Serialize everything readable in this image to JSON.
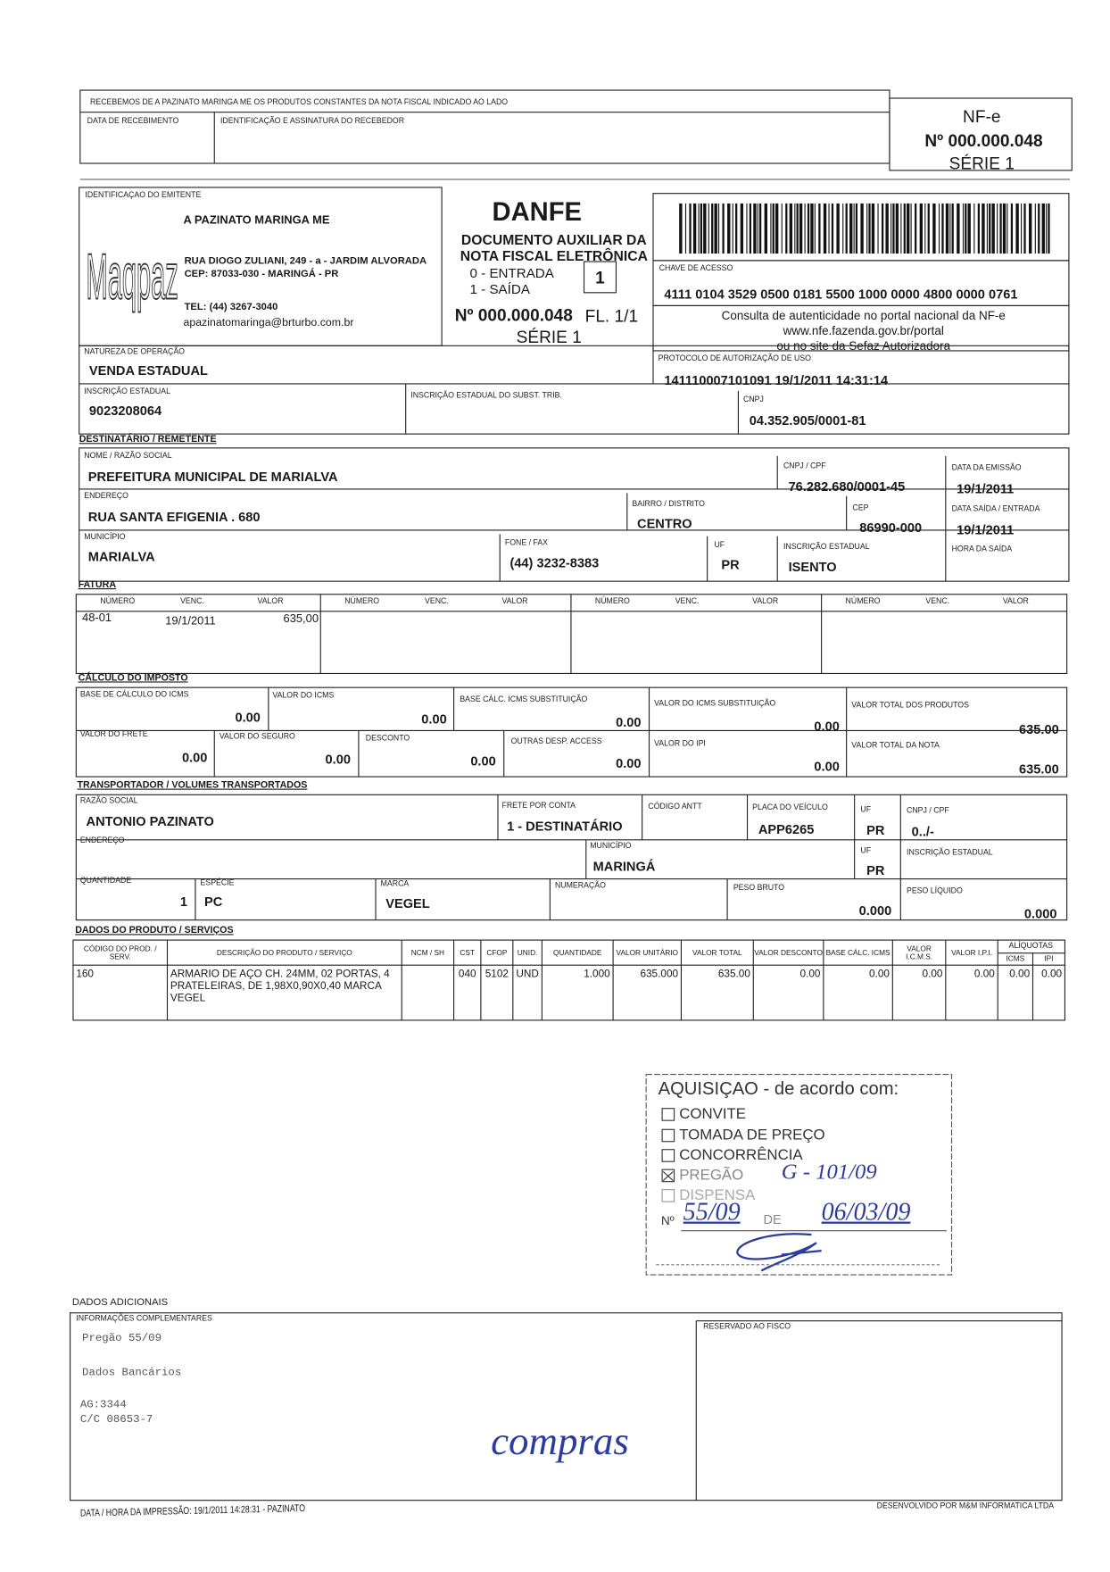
{
  "receipt": {
    "statement": "RECEBEMOS DE A PAZINATO MARINGA ME OS PRODUTOS CONSTANTES DA NOTA FISCAL INDICADO AO LADO",
    "date_label": "DATA DE RECEBIMENTO",
    "signature_label": "IDENTIFICAÇÃO E ASSINATURA DO RECEBEDOR",
    "nfe": "NF-e",
    "number": "Nº 000.000.048",
    "series": "SÉRIE 1"
  },
  "issuer": {
    "label": "IDENTIFICAÇAO DO EMITENTE",
    "logo": "Maqpaz",
    "name": "A PAZINATO MARINGA ME",
    "address": "RUA DIOGO ZULIANI, 249 - a - JARDIM ALVORADA",
    "cep": "CEP: 87033-030 - MARINGÁ - PR",
    "phone": "TEL: (44) 3267-3040",
    "email": "apazinatomaringa@brturbo.com.br"
  },
  "danfe": {
    "title": "DANFE",
    "subtitle_1": "DOCUMENTO AUXILIAR DA",
    "subtitle_2": "NOTA FISCAL ELETRÔNICA",
    "entry": "0 - ENTRADA",
    "exit": "1 - SAÍDA",
    "type": "1",
    "number": "Nº 000.000.048",
    "sheet": "FL. 1/1",
    "series": "SÉRIE 1"
  },
  "access": {
    "key_label": "CHAVE DE ACESSO",
    "key": "4111 0104 3529 0500 0181 5500 1000 0000 4800 0000 0761",
    "consult_1": "Consulta de autenticidade no portal nacional da NF-e",
    "consult_2": "www.nfe.fazenda.gov.br/portal",
    "consult_3": "ou no site da Sefaz Autorizadora"
  },
  "operation": {
    "nature_label": "NATUREZA DE OPERAÇÃO",
    "nature": "VENDA ESTADUAL",
    "protocol_label": "PROTOCOLO DE AUTORIZAÇÃO DE USO",
    "protocol": "141110007101091 19/1/2011 14:31:14",
    "ie_label": "INSCRIÇÃO ESTADUAL",
    "ie": "9023208064",
    "ie_subst_label": "INSCRIÇÃO ESTADUAL DO SUBST. TRIB.",
    "cnpj_label": "CNPJ",
    "cnpj": "04.352.905/0001-81"
  },
  "recipient": {
    "heading": "DESTINATÁRIO / REMETENTE",
    "name_label": "NOME / RAZÃO SOCIAL",
    "name": "PREFEITURA MUNICIPAL DE MARIALVA",
    "cnpj_label": "CNPJ / CPF",
    "cnpj": "76.282.680/0001-45",
    "emission_label": "DATA DA EMISSÃO",
    "emission_date": "19/1/2011",
    "address_label": "ENDEREÇO",
    "address": "RUA SANTA EFIGENIA . 680",
    "district_label": "BAIRRO / DISTRITO",
    "district": "CENTRO",
    "cep_label": "CEP",
    "cep": "86990-000",
    "exit_date_label": "DATA SAÍDA / ENTRADA",
    "exit_date": "19/1/2011",
    "city_label": "MUNICÍPIO",
    "city": "MARIALVA",
    "phone_label": "FONE / FAX",
    "phone": "(44) 3232-8383",
    "uf_label": "UF",
    "uf": "PR",
    "ie_label": "INSCRIÇÃO ESTADUAL",
    "ie": "ISENTO",
    "exit_time_label": "HORA DA SAÍDA"
  },
  "invoice": {
    "heading": "FATURA",
    "columns": [
      "NÚMERO",
      "VENC.",
      "VALOR"
    ],
    "items": [
      {
        "number": "48-01",
        "due": "19/1/2011",
        "value": "635,00"
      }
    ]
  },
  "tax": {
    "heading": "CÁLCULO DO IMPOSTO",
    "fields": [
      {
        "label": "BASE DE CÁLCULO DO ICMS",
        "value": "0.00"
      },
      {
        "label": "VALOR DO ICMS",
        "value": "0.00"
      },
      {
        "label": "BASE CÁLC. ICMS SUBSTITUIÇÃO",
        "value": "0.00"
      },
      {
        "label": "VALOR DO ICMS SUBSTITUIÇÃO",
        "value": "0.00"
      },
      {
        "label": "VALOR TOTAL DOS PRODUTOS",
        "value": "635.00"
      },
      {
        "label": "VALOR DO FRETE",
        "value": "0.00"
      },
      {
        "label": "VALOR DO SEGURO",
        "value": "0.00"
      },
      {
        "label": "DESCONTO",
        "value": "0.00"
      },
      {
        "label": "OUTRAS DESP. ACCESS",
        "value": "0.00"
      },
      {
        "label": "VALOR DO IPI",
        "value": "0.00"
      },
      {
        "label": "VALOR TOTAL DA NOTA",
        "value": "635.00"
      }
    ]
  },
  "transport": {
    "heading": "TRANSPORTADOR / VOLUMES TRANSPORTADOS",
    "name_label": "RAZÃO SOCIAL",
    "name": "ANTONIO PAZINATO",
    "freight_label": "FRETE POR CONTA",
    "freight": "1 - DESTINATÁRIO",
    "antt_label": "CÓDIGO ANTT",
    "plate_label": "PLACA DO VEÍCULO",
    "plate": "APP6265",
    "uf_label": "UF",
    "uf": "PR",
    "cnpj_label": "CNPJ / CPF",
    "cnpj": "0../-",
    "address_label": "ENDEREÇO",
    "city_label": "MUNICÍPIO",
    "city": "MARINGÁ",
    "uf2": "PR",
    "ie_label": "INSCRIÇÃO ESTADUAL",
    "quantity_label": "QUANTIDADE",
    "quantity": "1",
    "species_label": "ESPÉCIE",
    "species": "PC",
    "brand_label": "MARCA",
    "brand": "VEGEL",
    "numbering_label": "NUMERAÇÃO",
    "gross_label": "PESO BRUTO",
    "gross": "0.000",
    "net_label": "PESO LÍQUIDO",
    "net": "0.000"
  },
  "products": {
    "heading": "DADOS DO PRODUTO / SERVIÇOS",
    "rates_label": "ALÍQUOTAS",
    "columns": [
      "CÓDIGO DO PROD. / SERV.",
      "DESCRIÇÃO DO PRODUTO / SERVIÇO",
      "NCM / SH",
      "CST",
      "CFOP",
      "UNID.",
      "QUANTIDADE",
      "VALOR UNITÁRIO",
      "VALOR TOTAL",
      "VALOR DESCONTO",
      "BASE CÁLC. ICMS",
      "VALOR I.C.M.S.",
      "VALOR I.P.I.",
      "ICMS",
      "IPI"
    ],
    "items": [
      [
        "160",
        "ARMARIO DE AÇO CH. 24MM, 02 PORTAS, 4 PRATELEIRAS, DE 1,98X0,90X0,40 MARCA VEGEL",
        null,
        "040",
        "5102",
        "UND",
        "1.000",
        "635.000",
        "635.00",
        "0.00",
        "0.00",
        "0.00",
        "0.00",
        "0.00",
        "0.00"
      ]
    ]
  },
  "stamp": {
    "title": "AQUISIÇAO - de acordo com:",
    "options": [
      "CONVITE",
      "TOMADA DE PREÇO",
      "CONCORRÊNCIA",
      "PREGÃO",
      "DISPENSA"
    ],
    "process": "G - 101/09",
    "number_label": "Nº",
    "number": "55/09",
    "date_label": "DE",
    "date": "06/03/09"
  },
  "additional": {
    "heading": "DADOS ADICIONAIS",
    "info_label": "INFORMAÇÕES COMPLEMENTARES",
    "info_lines": [
      "Pregão 55/09",
      "Dados Bancários",
      "AG:3344",
      "C/C 08653-7"
    ],
    "note": "compras",
    "reserved_label": "RESERVADO AO FISCO"
  },
  "footer": {
    "printed": "DATA / HORA DA IMPRESSÃO: 19/1/2011 14:28:31 - PAZINATO",
    "developer": "DESENVOLVIDO POR M&M INFORMATICA LTDA"
  }
}
